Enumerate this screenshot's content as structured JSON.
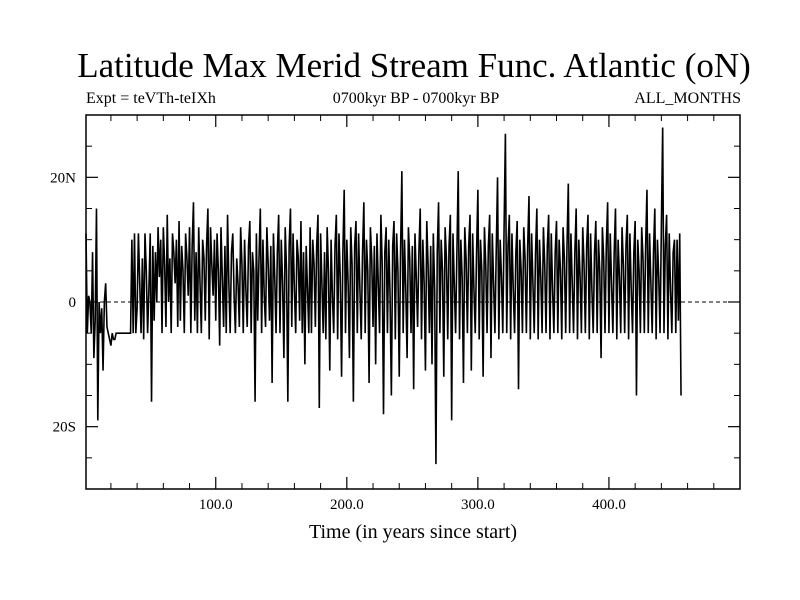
{
  "chart_data": {
    "type": "line",
    "title": "Latitude Max Merid Stream Func. Atlantic (oN)",
    "subtitle_left": "Expt = teVTh-teIXh",
    "subtitle_center": "0700kyr BP - 0700kyr BP",
    "subtitle_right": "ALL_MONTHS",
    "xlabel": "Time (in years since start)",
    "ylabel": "",
    "xlim": [
      1,
      500
    ],
    "ylim": [
      -30,
      30
    ],
    "x_ticks": [
      100,
      200,
      300,
      400
    ],
    "x_tick_labels": [
      "100.0",
      "200.0",
      "300.0",
      "400.0"
    ],
    "y_ticks": [
      -20,
      0,
      20
    ],
    "y_tick_labels": [
      "20S",
      "0",
      "20N"
    ],
    "y_minor_ticks": [
      -25,
      -15,
      -10,
      -5,
      5,
      10,
      15,
      25
    ],
    "zero_line": true,
    "grid": false,
    "series": [
      {
        "x_start": 1,
        "x_step": 1,
        "values": [
          11,
          -5,
          1,
          0,
          -5,
          8,
          -9,
          -3,
          15,
          -19,
          0,
          -5,
          -1,
          -11,
          0,
          3,
          -4,
          -5,
          -6,
          -7,
          -5,
          -6,
          -6,
          -5,
          -5,
          -5,
          -5,
          -5,
          -5,
          -5,
          -5,
          -5,
          -5,
          -5,
          -5,
          10,
          -5,
          11,
          -5,
          -1,
          11,
          3,
          -5,
          7,
          -6,
          11,
          5,
          -5,
          2,
          11,
          -16,
          9,
          -3,
          8,
          0,
          12,
          4,
          10,
          -5,
          12,
          6,
          -4,
          14,
          0,
          7,
          -5,
          11,
          8,
          3,
          10,
          -4,
          13,
          -3,
          9,
          5,
          -5,
          11,
          7,
          1,
          12,
          -5,
          9,
          16,
          -3,
          8,
          -5,
          12,
          3,
          -5,
          10,
          7,
          -3,
          9,
          15,
          -6,
          12,
          6,
          1,
          10,
          -3,
          11,
          5,
          -7,
          12,
          4,
          -4,
          9,
          -5,
          14,
          3,
          -5,
          8,
          11,
          1,
          -5,
          7,
          3,
          -4,
          12,
          6,
          -5,
          10,
          2,
          -4,
          9,
          13,
          -5,
          8,
          5,
          -16,
          11,
          -3,
          7,
          15,
          -5,
          10,
          1,
          -4,
          12,
          6,
          -3,
          9,
          -13,
          11,
          4,
          -5,
          8,
          14,
          -5,
          10,
          3,
          -9,
          12,
          5,
          -16,
          9,
          15,
          -4,
          11,
          2,
          -5,
          10,
          7,
          -3,
          13,
          -5,
          8,
          -10,
          9,
          2,
          -5,
          12,
          -5,
          10,
          6,
          -4,
          9,
          14,
          -17,
          11,
          3,
          -5,
          8,
          -6,
          12,
          5,
          -11,
          10,
          1,
          -5,
          9,
          14,
          -6,
          11,
          4,
          -12,
          8,
          18,
          -5,
          10,
          3,
          -9,
          12,
          6,
          -16,
          9,
          13,
          -5,
          11,
          2,
          -6,
          8,
          16,
          -5,
          10,
          5,
          -13,
          12,
          7,
          -4,
          9,
          -10,
          11,
          3,
          -5,
          14,
          6,
          -18,
          8,
          12,
          -5,
          10,
          1,
          -15,
          9,
          13,
          -6,
          11,
          5,
          -12,
          8,
          21,
          -5,
          10,
          2,
          -9,
          12,
          7,
          -5,
          9,
          -14,
          11,
          4,
          -4,
          8,
          15,
          -6,
          10,
          3,
          -11,
          13,
          6,
          -5,
          9,
          -10,
          11,
          2,
          -26,
          8,
          16,
          -5,
          10,
          5,
          -12,
          12,
          7,
          -6,
          9,
          14,
          -19,
          11,
          3,
          -5,
          8,
          21,
          -6,
          10,
          4,
          -13,
          12,
          7,
          -5,
          9,
          14,
          -11,
          11,
          2,
          -5,
          8,
          18,
          -6,
          10,
          5,
          -12,
          12,
          6,
          -5,
          9,
          14,
          -9,
          11,
          3,
          -5,
          8,
          20,
          -6,
          10,
          4,
          -5,
          12,
          27,
          -5,
          9,
          14,
          -6,
          11,
          2,
          -5,
          8,
          13,
          -14,
          10,
          5,
          -5,
          12,
          7,
          -5,
          9,
          17,
          -6,
          11,
          3,
          -5,
          8,
          15,
          -6,
          10,
          4,
          -5,
          12,
          6,
          -5,
          9,
          14,
          -6,
          11,
          2,
          -5,
          8,
          13,
          -5,
          10,
          5,
          -6,
          12,
          7,
          -5,
          9,
          19,
          -5,
          11,
          3,
          -5,
          8,
          15,
          -6,
          10,
          4,
          -5,
          12,
          6,
          -5,
          9,
          14,
          -6,
          11,
          2,
          -5,
          8,
          13,
          -5,
          10,
          5,
          -9,
          12,
          7,
          -5,
          9,
          16,
          -5,
          11,
          3,
          -5,
          8,
          15,
          -6,
          10,
          4,
          -5,
          12,
          6,
          -5,
          9,
          14,
          -6,
          11,
          2,
          -5,
          8,
          13,
          -15,
          10,
          5,
          -5,
          12,
          7,
          -5,
          9,
          18,
          -5,
          11,
          3,
          -5,
          8,
          15,
          -6,
          10,
          4,
          -5,
          12,
          28,
          -5,
          9,
          14,
          -6,
          11,
          2,
          -5,
          8,
          10,
          -5,
          10,
          -3,
          11,
          -15
        ]
      }
    ]
  }
}
